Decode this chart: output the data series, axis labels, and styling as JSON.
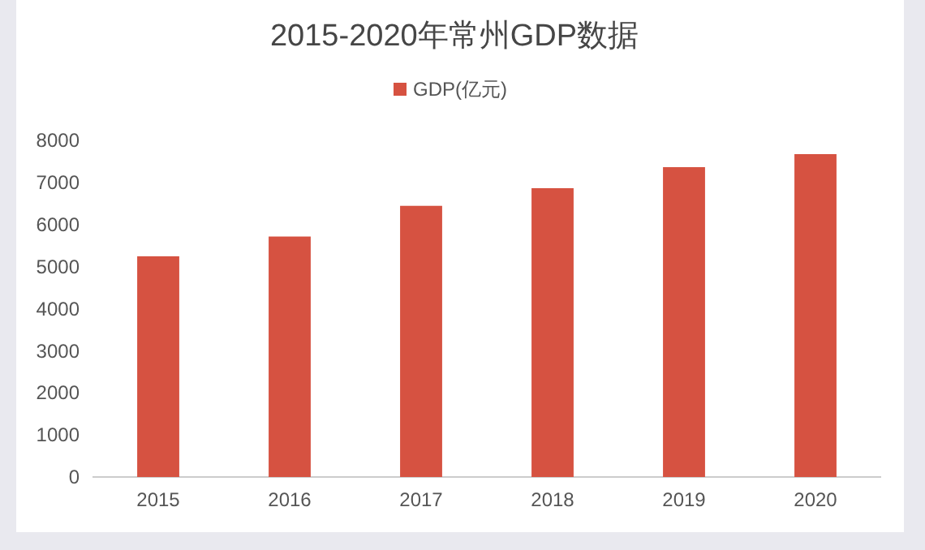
{
  "chart_data": {
    "type": "bar",
    "title": "2015-2020年常州GDP数据",
    "categories": [
      "2015",
      "2016",
      "2017",
      "2018",
      "2019",
      "2020"
    ],
    "series": [
      {
        "name": "GDP(亿元)",
        "color": "#d65241",
        "values": [
          5250,
          5720,
          6450,
          6870,
          7370,
          7680
        ]
      }
    ],
    "ylim": [
      0,
      8000
    ],
    "yticks": [
      0,
      1000,
      2000,
      3000,
      4000,
      5000,
      6000,
      7000,
      8000
    ],
    "legend": "top"
  }
}
